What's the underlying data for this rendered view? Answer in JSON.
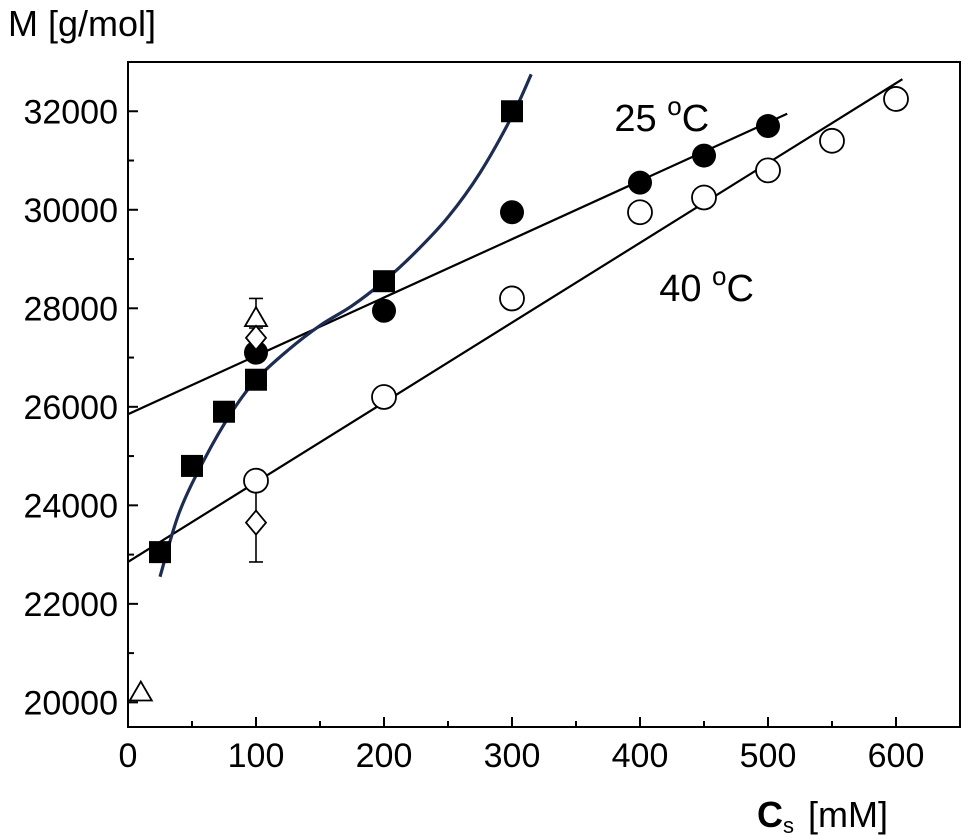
{
  "chart_data": {
    "type": "scatter",
    "title": "",
    "ylabel": "M [g/mol]",
    "xlabel_main": "C",
    "xlabel_sub": "s",
    "xlabel_unit": "[mM]",
    "xlim": [
      0,
      650
    ],
    "ylim": [
      19500,
      33000
    ],
    "xticks": [
      0,
      100,
      200,
      300,
      400,
      500,
      600
    ],
    "yticks": [
      20000,
      22000,
      24000,
      26000,
      28000,
      30000,
      32000
    ],
    "annotations": [
      {
        "text_main": "25 ",
        "text_sup": "o",
        "text_end": "C",
        "x": 380,
        "y": 31600
      },
      {
        "text_main": "40 ",
        "text_sup": "o",
        "text_end": "C",
        "x": 415,
        "y": 28150
      }
    ],
    "series": [
      {
        "marker": "square-filled",
        "points": [
          [
            25,
            23050
          ],
          [
            50,
            24800
          ],
          [
            75,
            25900
          ],
          [
            100,
            26550
          ],
          [
            200,
            28550
          ],
          [
            300,
            32000
          ]
        ]
      },
      {
        "marker": "circle-filled",
        "points": [
          [
            100,
            27100
          ],
          [
            200,
            27950
          ],
          [
            300,
            29950
          ],
          [
            400,
            30550
          ],
          [
            450,
            31100
          ],
          [
            500,
            31700
          ]
        ]
      },
      {
        "marker": "circle-open",
        "points": [
          [
            100,
            24500
          ],
          [
            200,
            26200
          ],
          [
            300,
            28200
          ],
          [
            400,
            29950
          ],
          [
            450,
            30250
          ],
          [
            500,
            30800
          ],
          [
            550,
            31400
          ],
          [
            600,
            32250
          ]
        ]
      },
      {
        "marker": "triangle-open",
        "points": [
          [
            10,
            20200
          ],
          [
            100,
            27800
          ]
        ],
        "error_bar": {
          "x": 100,
          "low": 27600,
          "high": 28200
        }
      },
      {
        "marker": "diamond-open",
        "points": [
          [
            100,
            27400
          ],
          [
            100,
            23650
          ]
        ],
        "error_bar": {
          "x": 100,
          "low": 22850,
          "high": 24350
        }
      }
    ],
    "fit_lines": [
      {
        "style": "black",
        "x": [
          0,
          515
        ],
        "y": [
          25850,
          31950
        ]
      },
      {
        "style": "black",
        "x": [
          0,
          605
        ],
        "y": [
          22850,
          32650
        ]
      }
    ],
    "fit_curves": [
      {
        "style": "navy",
        "x": [
          25,
          40,
          60,
          80,
          100,
          125,
          150,
          175,
          200,
          225,
          250,
          275,
          300,
          315
        ],
        "y": [
          22550,
          23850,
          24950,
          25850,
          26550,
          27150,
          27650,
          28050,
          28550,
          29150,
          29850,
          30750,
          31900,
          32750
        ]
      }
    ],
    "colors": {
      "curve": "#1d2c52",
      "line": "#000000",
      "marker": "#000000"
    }
  }
}
